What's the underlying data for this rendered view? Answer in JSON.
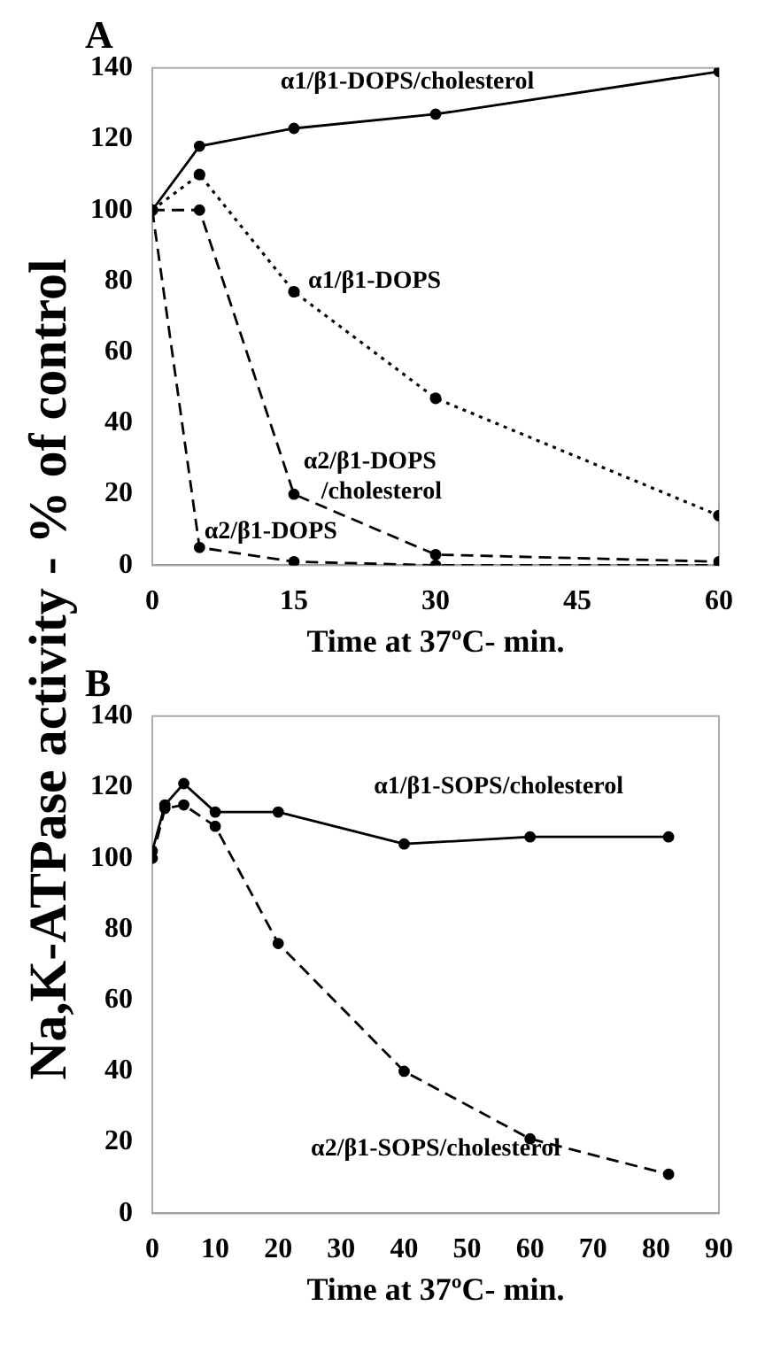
{
  "chart_data": [
    {
      "type": "line",
      "title": "A",
      "ylabel": "Na,K-ATPase activity - % of control",
      "xlabel": "Time at 37ºC- min.",
      "x": [
        0,
        5,
        15,
        30,
        60
      ],
      "xlim": [
        0,
        60
      ],
      "xticks": [
        0,
        15,
        30,
        45,
        60
      ],
      "ylim": [
        0,
        140
      ],
      "yticks": [
        0,
        20,
        40,
        60,
        80,
        100,
        120,
        140
      ],
      "grid": false,
      "legend": false,
      "marker": "circle",
      "series": [
        {
          "name": "α1/β1-DOPS/cholesterol",
          "color": "#000000",
          "line_style": "solid",
          "values": [
            100,
            118,
            123,
            127,
            139
          ]
        },
        {
          "name": "α1/β1-DOPS",
          "color": "#000000",
          "line_style": "dotted",
          "values": [
            100,
            110,
            77,
            47,
            14
          ]
        },
        {
          "name": "α2/β1-DOPS\n/cholesterol",
          "color": "#000000",
          "line_style": "dashed",
          "values": [
            100,
            100,
            20,
            3,
            1
          ]
        },
        {
          "name": "α2/β1-DOPS",
          "color": "#000000",
          "line_style": "dashed",
          "values": [
            100,
            5,
            1,
            0,
            0
          ]
        }
      ]
    },
    {
      "type": "line",
      "title": "B",
      "xlabel": "Time at 37ºC- min.",
      "xlim": [
        0,
        90
      ],
      "xticks": [
        0,
        10,
        20,
        30,
        40,
        50,
        60,
        70,
        80,
        90
      ],
      "ylim": [
        0,
        140
      ],
      "yticks": [
        0,
        20,
        40,
        60,
        80,
        100,
        120,
        140
      ],
      "grid": false,
      "legend": false,
      "marker": "circle",
      "series": [
        {
          "name": "α1/β1-SOPS/cholesterol",
          "color": "#000000",
          "line_style": "solid",
          "x": [
            0,
            2,
            5,
            10,
            20,
            40,
            60,
            82
          ],
          "values": [
            102,
            115,
            121,
            113,
            113,
            104,
            106,
            106
          ]
        },
        {
          "name": "α2/β1-SOPS/cholesterol",
          "color": "#000000",
          "line_style": "dashed",
          "x": [
            0,
            2,
            5,
            10,
            20,
            40,
            60,
            82
          ],
          "values": [
            100,
            114,
            115,
            109,
            76,
            40,
            21,
            11
          ]
        }
      ]
    }
  ]
}
